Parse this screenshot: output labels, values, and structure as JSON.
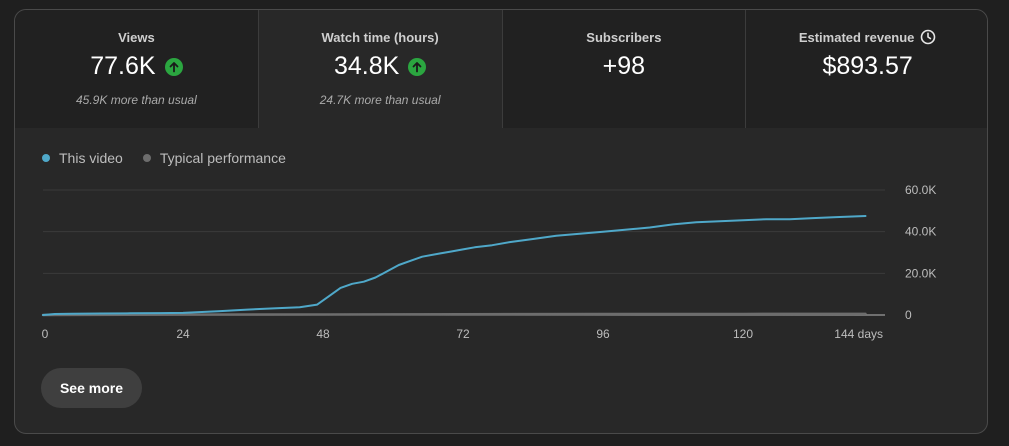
{
  "metrics": [
    {
      "label": "Views",
      "value": "77.6K",
      "note": "45.9K more than usual",
      "trend": "up"
    },
    {
      "label": "Watch time (hours)",
      "value": "34.8K",
      "note": "24.7K more than usual",
      "trend": "up"
    },
    {
      "label": "Subscribers",
      "value": "+98",
      "note": "",
      "trend": "none"
    },
    {
      "label": "Estimated revenue",
      "value": "$893.57",
      "note": "",
      "trend": "none",
      "icon": "clock-icon"
    }
  ],
  "legend": {
    "this_video": "This video",
    "typical": "Typical performance"
  },
  "colors": {
    "this_video": "#4fa8c9",
    "typical": "#6d6d6d",
    "up": "#2ba640"
  },
  "chart_data": {
    "type": "line",
    "x_ticks": [
      "0",
      "24",
      "48",
      "72",
      "96",
      "120",
      "144 days"
    ],
    "y_ticks": [
      "60.0K",
      "40.0K",
      "20.0K",
      "0"
    ],
    "xlim": [
      0,
      144
    ],
    "ylim": [
      0,
      60000
    ],
    "series": [
      {
        "name": "This video",
        "x": [
          0,
          2,
          5,
          10,
          15,
          20,
          24,
          30,
          35,
          40,
          44,
          47,
          49,
          51,
          53,
          55,
          57,
          59,
          61,
          63,
          65,
          68,
          70,
          72,
          74,
          77,
          80,
          84,
          88,
          92,
          96,
          100,
          104,
          108,
          112,
          116,
          120,
          124,
          128,
          132,
          136,
          141
        ],
        "y": [
          0,
          500,
          600,
          700,
          800,
          900,
          1000,
          1800,
          2600,
          3200,
          3700,
          5000,
          9000,
          13000,
          15000,
          16000,
          18000,
          21000,
          24000,
          26000,
          28000,
          29500,
          30500,
          31500,
          32500,
          33500,
          35000,
          36500,
          38000,
          39000,
          40000,
          41000,
          42000,
          43500,
          44500,
          45000,
          45500,
          46000,
          46000,
          46500,
          47000,
          47500
        ]
      },
      {
        "name": "Typical performance",
        "x": [
          0,
          24,
          48,
          72,
          96,
          120,
          141
        ],
        "y": [
          0,
          200,
          300,
          400,
          500,
          550,
          600
        ]
      }
    ]
  },
  "actions": {
    "see_more": "See more"
  }
}
